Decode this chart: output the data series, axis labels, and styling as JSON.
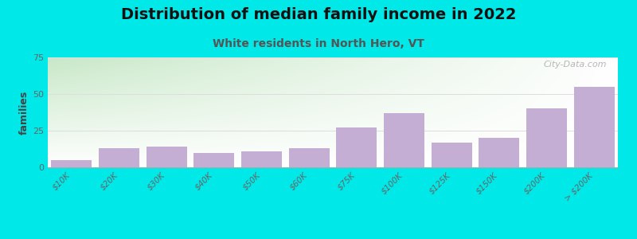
{
  "title": "Distribution of median family income in 2022",
  "subtitle": "White residents in North Hero, VT",
  "categories": [
    "$10K",
    "$20K",
    "$30K",
    "$40K",
    "$50K",
    "$60K",
    "$75K",
    "$100K",
    "$125K",
    "$150K",
    "$200K",
    "> $200K"
  ],
  "values": [
    5,
    13,
    14,
    10,
    11,
    13,
    27,
    37,
    17,
    20,
    40,
    55
  ],
  "bar_color": "#c5aed4",
  "background_outer": "#00e8e8",
  "gradient_left": "#c8e8c8",
  "gradient_right": "#f0f8f0",
  "title_fontsize": 14,
  "subtitle_fontsize": 10,
  "subtitle_color": "#555555",
  "ylabel": "families",
  "ylim": [
    0,
    75
  ],
  "yticks": [
    0,
    25,
    50,
    75
  ],
  "grid_color": "#dddddd",
  "watermark": "City-Data.com",
  "watermark_color": "#aaaaaa"
}
